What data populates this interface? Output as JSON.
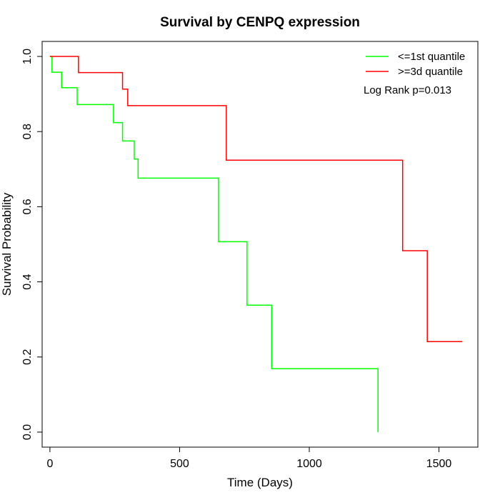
{
  "chart_data": {
    "type": "line",
    "title": "Survival by CENPQ expression",
    "xlabel": "Time (Days)",
    "ylabel": "Survival Probability",
    "xlim": [
      -30,
      1650
    ],
    "ylim": [
      -0.04,
      1.04
    ],
    "xticks": [
      0,
      500,
      1000,
      1500
    ],
    "yticks": [
      0.0,
      0.2,
      0.4,
      0.6,
      0.8,
      1.0
    ],
    "xtick_labels": [
      "0",
      "500",
      "1000",
      "1500"
    ],
    "ytick_labels": [
      "0.0",
      "0.2",
      "0.4",
      "0.6",
      "0.8",
      "1.0"
    ],
    "legend_position": "top-right",
    "grid": false,
    "annotation": "Log Rank p=0.013",
    "series": [
      {
        "name": "<=1st quantile",
        "color": "#00ff00",
        "step": true,
        "x": [
          0,
          8,
          45,
          105,
          245,
          280,
          325,
          340,
          350,
          650,
          760,
          855,
          1265,
          1265
        ],
        "y": [
          1.0,
          0.958,
          0.917,
          0.872,
          0.824,
          0.775,
          0.727,
          0.676,
          0.676,
          0.507,
          0.338,
          0.169,
          0.169,
          0.0
        ]
      },
      {
        "name": ">=3d quantile",
        "color": "#ff0000",
        "step": true,
        "x": [
          0,
          110,
          280,
          300,
          680,
          1360,
          1455,
          1590
        ],
        "y": [
          1.0,
          0.957,
          0.913,
          0.869,
          0.724,
          0.483,
          0.241,
          0.241
        ]
      }
    ]
  }
}
